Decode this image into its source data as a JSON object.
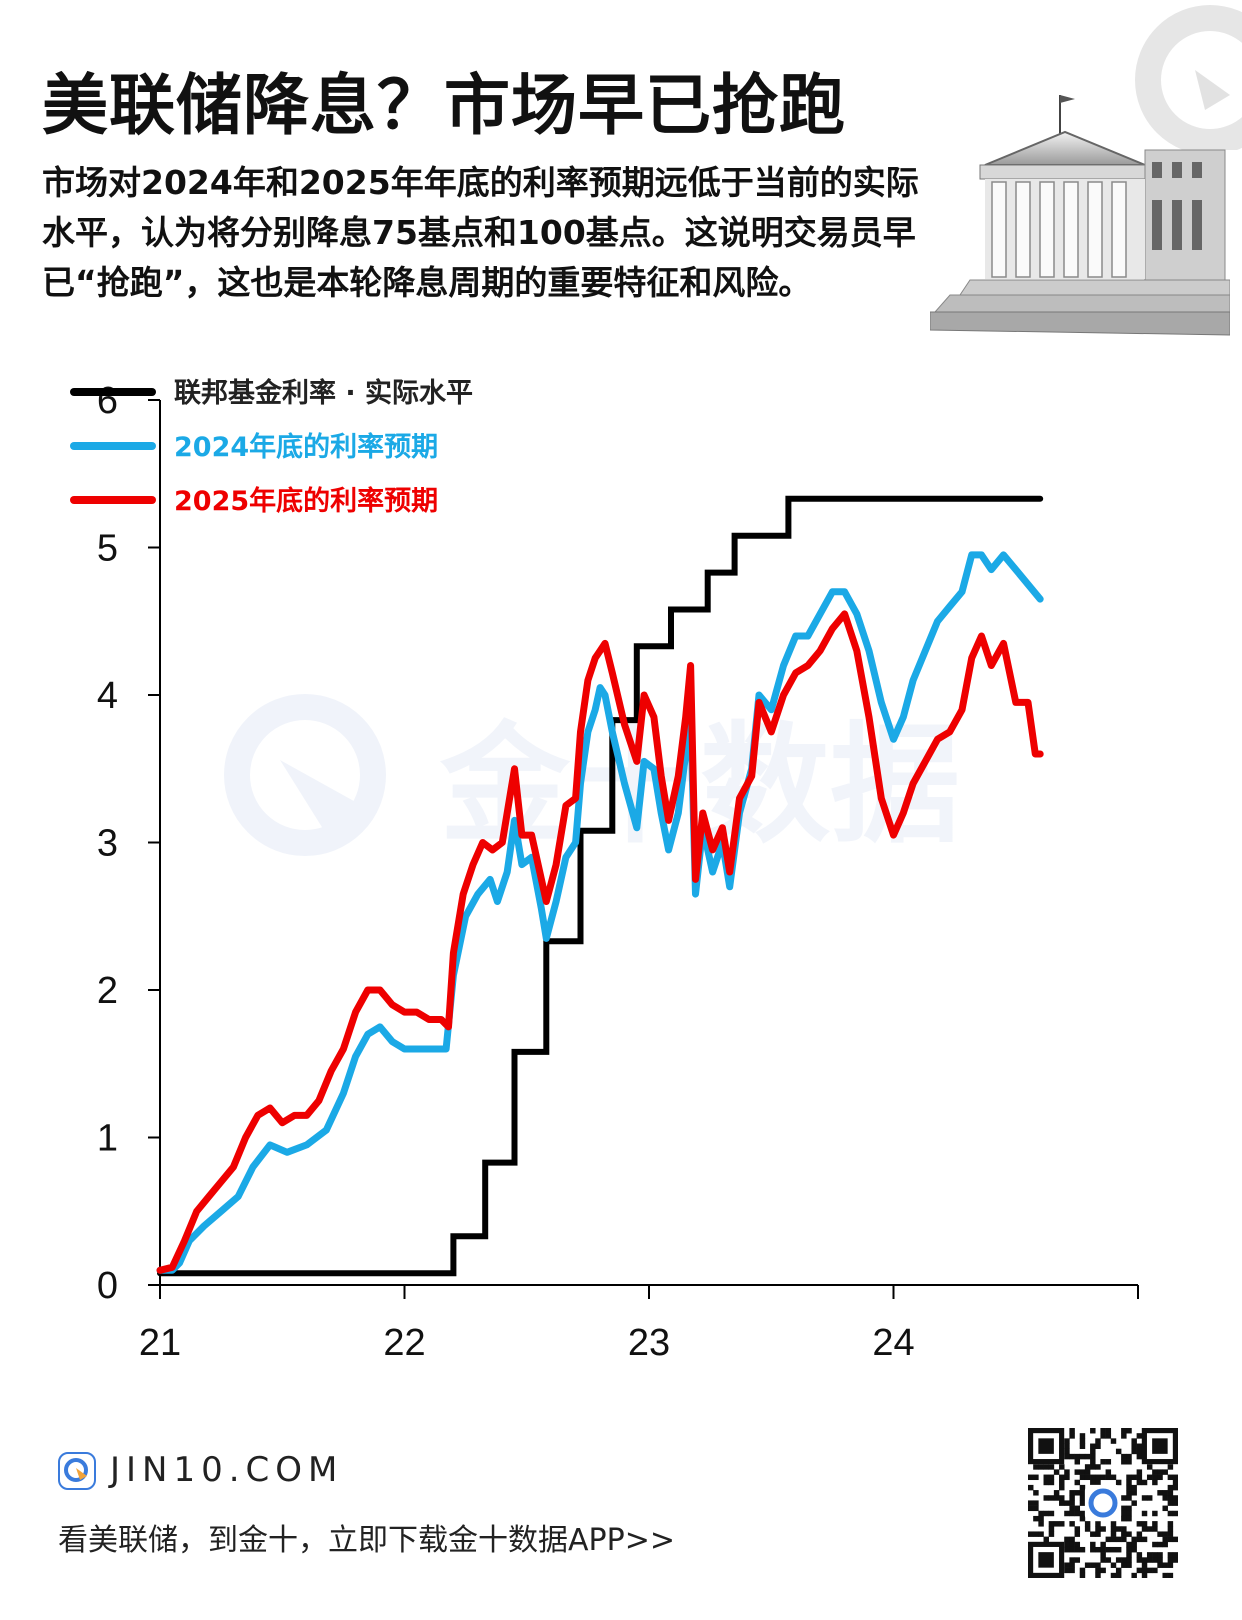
{
  "header": {
    "title": "美联储降息？市场早已抢跑",
    "subtitle": "市场对2024年和2025年年底的利率预期远低于当前的实际水平，认为将分别降息75基点和100基点。这说明交易员早已“抢跑”，这也是本轮降息周期的重要特征和风险。"
  },
  "icons": {
    "building": "federal-reserve-building-icon",
    "brand": "jin10-logo-icon",
    "qr": "qr-code-icon"
  },
  "watermark": {
    "text": "金十数据"
  },
  "footer": {
    "site": "JIN10.COM",
    "cta": "看美联储，到金十，立即下载金十数据APP>>"
  },
  "colors": {
    "actual": "#000000",
    "exp2024": "#1BA9E6",
    "exp2025": "#EE0000"
  },
  "chart_data": {
    "type": "line",
    "x_tick_labels": [
      "21",
      "22",
      "23",
      "24"
    ],
    "xlim": [
      21,
      25
    ],
    "y_ticks": [
      "0",
      "1",
      "2",
      "3",
      "4",
      "5",
      "6"
    ],
    "ylim": [
      0,
      6
    ],
    "grid": false,
    "legend_placement": "top-left",
    "series": [
      {
        "name": "联邦基金利率 · 实际水平",
        "color": "#000000",
        "step": true,
        "points": [
          [
            21.0,
            0.08
          ],
          [
            22.2,
            0.08
          ],
          [
            22.2,
            0.33
          ],
          [
            22.33,
            0.33
          ],
          [
            22.33,
            0.83
          ],
          [
            22.45,
            0.83
          ],
          [
            22.45,
            1.58
          ],
          [
            22.58,
            1.58
          ],
          [
            22.58,
            2.33
          ],
          [
            22.72,
            2.33
          ],
          [
            22.72,
            3.08
          ],
          [
            22.85,
            3.08
          ],
          [
            22.85,
            3.83
          ],
          [
            22.95,
            3.83
          ],
          [
            22.95,
            4.33
          ],
          [
            23.09,
            4.33
          ],
          [
            23.09,
            4.58
          ],
          [
            23.24,
            4.58
          ],
          [
            23.24,
            4.83
          ],
          [
            23.35,
            4.83
          ],
          [
            23.35,
            5.08
          ],
          [
            23.57,
            5.08
          ],
          [
            23.57,
            5.33
          ],
          [
            24.6,
            5.33
          ]
        ]
      },
      {
        "name": "2024年底的利率预期",
        "color": "#1BA9E6",
        "points": [
          [
            21.0,
            0.1
          ],
          [
            21.05,
            0.1
          ],
          [
            21.08,
            0.15
          ],
          [
            21.12,
            0.3
          ],
          [
            21.18,
            0.4
          ],
          [
            21.25,
            0.5
          ],
          [
            21.32,
            0.6
          ],
          [
            21.38,
            0.8
          ],
          [
            21.45,
            0.95
          ],
          [
            21.52,
            0.9
          ],
          [
            21.6,
            0.95
          ],
          [
            21.68,
            1.05
          ],
          [
            21.75,
            1.3
          ],
          [
            21.8,
            1.55
          ],
          [
            21.85,
            1.7
          ],
          [
            21.9,
            1.75
          ],
          [
            21.95,
            1.65
          ],
          [
            22.0,
            1.6
          ],
          [
            22.1,
            1.6
          ],
          [
            22.17,
            1.6
          ],
          [
            22.2,
            2.1
          ],
          [
            22.25,
            2.5
          ],
          [
            22.3,
            2.65
          ],
          [
            22.35,
            2.75
          ],
          [
            22.38,
            2.6
          ],
          [
            22.42,
            2.8
          ],
          [
            22.45,
            3.15
          ],
          [
            22.48,
            2.85
          ],
          [
            22.52,
            2.9
          ],
          [
            22.56,
            2.55
          ],
          [
            22.58,
            2.35
          ],
          [
            22.62,
            2.6
          ],
          [
            22.66,
            2.9
          ],
          [
            22.7,
            3.0
          ],
          [
            22.72,
            3.4
          ],
          [
            22.75,
            3.75
          ],
          [
            22.78,
            3.9
          ],
          [
            22.8,
            4.05
          ],
          [
            22.82,
            4.0
          ],
          [
            22.85,
            3.75
          ],
          [
            22.9,
            3.4
          ],
          [
            22.95,
            3.1
          ],
          [
            22.98,
            3.55
          ],
          [
            23.02,
            3.5
          ],
          [
            23.05,
            3.2
          ],
          [
            23.08,
            2.95
          ],
          [
            23.12,
            3.2
          ],
          [
            23.15,
            3.6
          ],
          [
            23.17,
            3.9
          ],
          [
            23.19,
            2.65
          ],
          [
            23.22,
            3.1
          ],
          [
            23.26,
            2.8
          ],
          [
            23.3,
            3.0
          ],
          [
            23.33,
            2.7
          ],
          [
            23.37,
            3.2
          ],
          [
            23.42,
            3.5
          ],
          [
            23.45,
            4.0
          ],
          [
            23.5,
            3.9
          ],
          [
            23.55,
            4.2
          ],
          [
            23.6,
            4.4
          ],
          [
            23.65,
            4.4
          ],
          [
            23.7,
            4.55
          ],
          [
            23.75,
            4.7
          ],
          [
            23.8,
            4.7
          ],
          [
            23.85,
            4.55
          ],
          [
            23.9,
            4.3
          ],
          [
            23.95,
            3.95
          ],
          [
            24.0,
            3.7
          ],
          [
            24.04,
            3.85
          ],
          [
            24.08,
            4.1
          ],
          [
            24.13,
            4.3
          ],
          [
            24.18,
            4.5
          ],
          [
            24.23,
            4.6
          ],
          [
            24.28,
            4.7
          ],
          [
            24.32,
            4.95
          ],
          [
            24.36,
            4.95
          ],
          [
            24.4,
            4.85
          ],
          [
            24.45,
            4.95
          ],
          [
            24.5,
            4.85
          ],
          [
            24.55,
            4.75
          ],
          [
            24.6,
            4.65
          ]
        ]
      },
      {
        "name": "2025年底的利率预期",
        "color": "#EE0000",
        "points": [
          [
            21.0,
            0.1
          ],
          [
            21.05,
            0.12
          ],
          [
            21.1,
            0.3
          ],
          [
            21.15,
            0.5
          ],
          [
            21.2,
            0.6
          ],
          [
            21.25,
            0.7
          ],
          [
            21.3,
            0.8
          ],
          [
            21.35,
            1.0
          ],
          [
            21.4,
            1.15
          ],
          [
            21.45,
            1.2
          ],
          [
            21.5,
            1.1
          ],
          [
            21.55,
            1.15
          ],
          [
            21.6,
            1.15
          ],
          [
            21.65,
            1.25
          ],
          [
            21.7,
            1.45
          ],
          [
            21.75,
            1.6
          ],
          [
            21.8,
            1.85
          ],
          [
            21.85,
            2.0
          ],
          [
            21.9,
            2.0
          ],
          [
            21.95,
            1.9
          ],
          [
            22.0,
            1.85
          ],
          [
            22.05,
            1.85
          ],
          [
            22.1,
            1.8
          ],
          [
            22.15,
            1.8
          ],
          [
            22.18,
            1.75
          ],
          [
            22.2,
            2.25
          ],
          [
            22.24,
            2.65
          ],
          [
            22.28,
            2.85
          ],
          [
            22.32,
            3.0
          ],
          [
            22.36,
            2.95
          ],
          [
            22.4,
            3.0
          ],
          [
            22.43,
            3.3
          ],
          [
            22.45,
            3.5
          ],
          [
            22.48,
            3.05
          ],
          [
            22.52,
            3.05
          ],
          [
            22.56,
            2.75
          ],
          [
            22.58,
            2.6
          ],
          [
            22.62,
            2.85
          ],
          [
            22.66,
            3.25
          ],
          [
            22.7,
            3.3
          ],
          [
            22.72,
            3.75
          ],
          [
            22.75,
            4.1
          ],
          [
            22.78,
            4.25
          ],
          [
            22.8,
            4.3
          ],
          [
            22.82,
            4.35
          ],
          [
            22.85,
            4.15
          ],
          [
            22.9,
            3.8
          ],
          [
            22.95,
            3.55
          ],
          [
            22.98,
            4.0
          ],
          [
            23.02,
            3.85
          ],
          [
            23.05,
            3.45
          ],
          [
            23.08,
            3.15
          ],
          [
            23.12,
            3.45
          ],
          [
            23.15,
            3.85
          ],
          [
            23.17,
            4.2
          ],
          [
            23.19,
            2.75
          ],
          [
            23.22,
            3.2
          ],
          [
            23.26,
            2.95
          ],
          [
            23.3,
            3.1
          ],
          [
            23.33,
            2.8
          ],
          [
            23.37,
            3.3
          ],
          [
            23.42,
            3.45
          ],
          [
            23.45,
            3.95
          ],
          [
            23.5,
            3.75
          ],
          [
            23.55,
            4.0
          ],
          [
            23.6,
            4.15
          ],
          [
            23.65,
            4.2
          ],
          [
            23.7,
            4.3
          ],
          [
            23.75,
            4.45
          ],
          [
            23.8,
            4.55
          ],
          [
            23.85,
            4.3
          ],
          [
            23.9,
            3.85
          ],
          [
            23.95,
            3.3
          ],
          [
            24.0,
            3.05
          ],
          [
            24.04,
            3.2
          ],
          [
            24.08,
            3.4
          ],
          [
            24.13,
            3.55
          ],
          [
            24.18,
            3.7
          ],
          [
            24.23,
            3.75
          ],
          [
            24.28,
            3.9
          ],
          [
            24.32,
            4.25
          ],
          [
            24.36,
            4.4
          ],
          [
            24.4,
            4.2
          ],
          [
            24.45,
            4.35
          ],
          [
            24.5,
            3.95
          ],
          [
            24.55,
            3.95
          ],
          [
            24.58,
            3.6
          ],
          [
            24.6,
            3.6
          ]
        ]
      }
    ]
  }
}
